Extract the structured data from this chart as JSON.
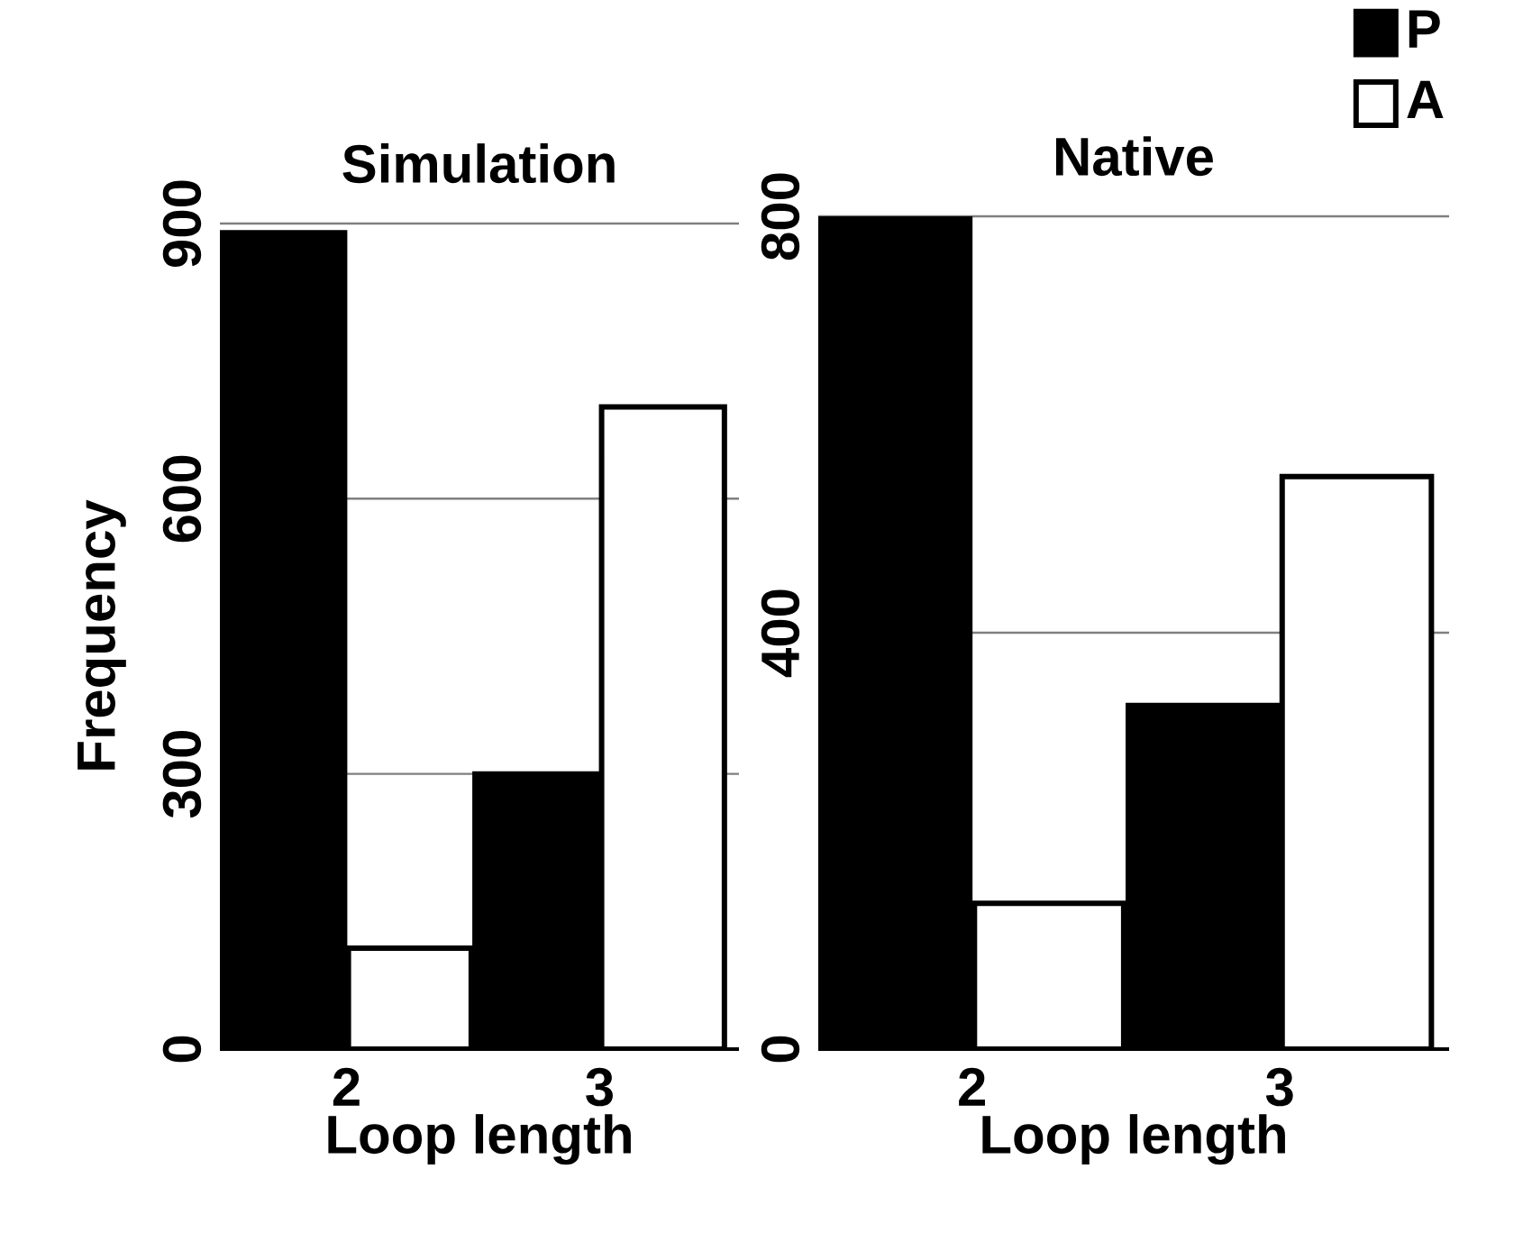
{
  "chart_data": [
    {
      "type": "bar",
      "title": "Simulation",
      "xlabel": "Loop length",
      "ylabel": "Frequency",
      "categories": [
        "2",
        "3"
      ],
      "ylim": [
        0,
        900
      ],
      "yticks": [
        0,
        300,
        600,
        900
      ],
      "grid": "y",
      "series": [
        {
          "color": "#000000",
          "values": [
            890,
            300
          ]
        },
        {
          "color": "#ffffff",
          "values": [
            110,
            700
          ]
        }
      ]
    },
    {
      "type": "bar",
      "title": "Native",
      "xlabel": "Loop length",
      "categories": [
        "2",
        "3"
      ],
      "ylim": [
        0,
        800
      ],
      "yticks": [
        0,
        400,
        800
      ],
      "grid": "y",
      "legend": "top right",
      "series": [
        {
          "name": "P",
          "color": "#000000",
          "values": [
            800,
            330
          ]
        },
        {
          "name": "A",
          "color": "#ffffff",
          "values": [
            140,
            550
          ]
        }
      ]
    }
  ]
}
